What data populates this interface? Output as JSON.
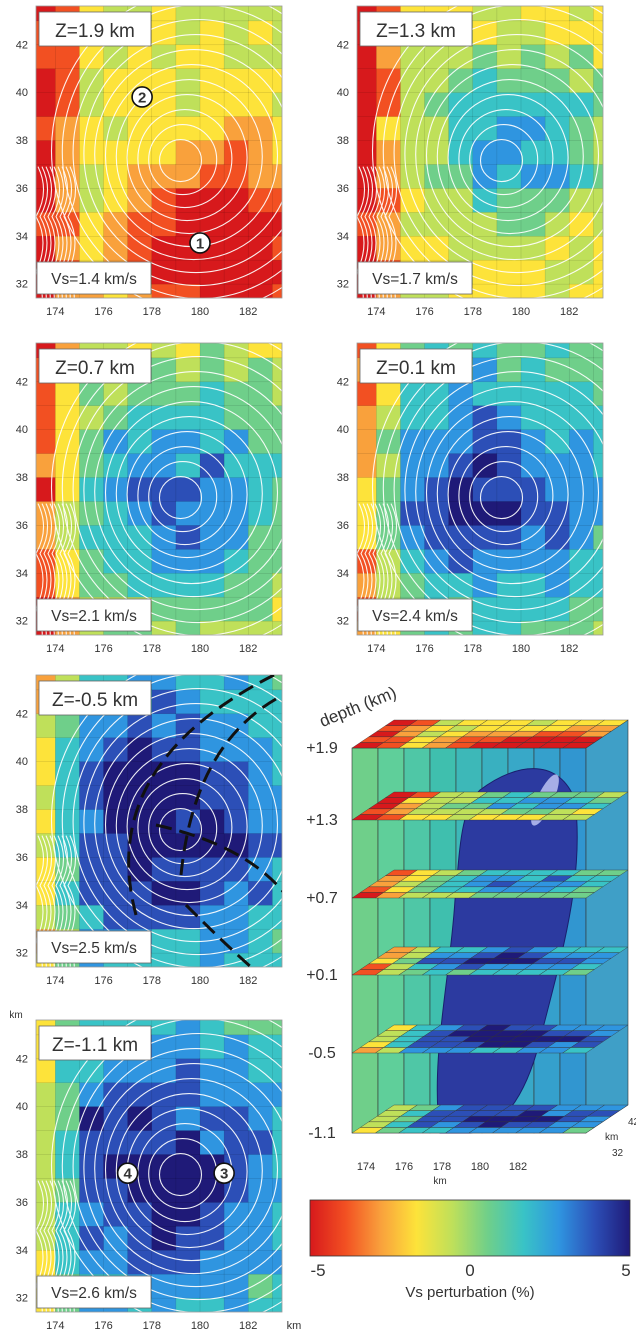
{
  "chart_data": {
    "type": "heatmap",
    "x_ticks": [
      "174",
      "176",
      "178",
      "180",
      "182"
    ],
    "y_ticks": [
      "32",
      "34",
      "36",
      "38",
      "40",
      "42"
    ],
    "x_unit": "km",
    "y_unit": "km",
    "panels": [
      {
        "label": "Z=1.9 km",
        "vs": "Vs=1.4 km/s",
        "center": [
          181,
          33.5
        ],
        "amp": -4.8,
        "spread": 2.8,
        "ambient": -1.0,
        "markers": [
          {
            "text": "2",
            "x": 177.6,
            "y": 39.8
          },
          {
            "text": "1",
            "x": 180.0,
            "y": 33.7
          }
        ]
      },
      {
        "label": "Z=1.3 km",
        "vs": "Vs=1.7 km/s",
        "center": [
          180,
          38
        ],
        "amp": 4.0,
        "spread": 2.6,
        "ambient": -1.5,
        "markers": []
      },
      {
        "label": "Z=0.7 km",
        "vs": "Vs=2.1 km/s",
        "center": [
          179,
          37.2
        ],
        "amp": 4.3,
        "spread": 3.4,
        "ambient": -1.2,
        "markers": []
      },
      {
        "label": "Z=0.1 km",
        "vs": "Vs=2.4 km/s",
        "center": [
          178.8,
          37.3
        ],
        "amp": 4.5,
        "spread": 3.8,
        "ambient": -0.5,
        "markers": []
      },
      {
        "label": "Z=-0.5 km",
        "vs": "Vs=2.5 km/s",
        "center": [
          178.5,
          37.5
        ],
        "amp": 4.5,
        "spread": 4.2,
        "ambient": 0.2,
        "markers": []
      },
      {
        "label": "Z=-1.1 km",
        "vs": "Vs=2.6 km/s",
        "center": [
          178,
          37.3
        ],
        "amp": 3.8,
        "spread": 4.2,
        "ambient": 0.5,
        "markers": [
          {
            "text": "4",
            "x": 177.0,
            "y": 37.2
          },
          {
            "text": "3",
            "x": 181.0,
            "y": 37.2
          }
        ]
      }
    ],
    "block_3d": {
      "depth_title": "depth (km)",
      "depth_levels": [
        "+1.9",
        "+1.3",
        "+0.7",
        "+0.1",
        "-0.5",
        "-1.1"
      ],
      "x_ticks": [
        "174",
        "176",
        "178",
        "180",
        "182"
      ],
      "x_unit": "km",
      "y_ticks": [
        "32",
        "42"
      ],
      "y_unit": "km"
    },
    "colorbar": {
      "min_label": "-5",
      "mid_label": "0",
      "max_label": "5",
      "label": "Vs perturbation (%)",
      "range": [
        -5,
        5
      ]
    },
    "colors": [
      "#d7191c",
      "#f25022",
      "#f9a13c",
      "#fde33a",
      "#bfe05a",
      "#6fcf8a",
      "#39c3c6",
      "#2f95e0",
      "#2c4fb7",
      "#1f1a78"
    ]
  }
}
